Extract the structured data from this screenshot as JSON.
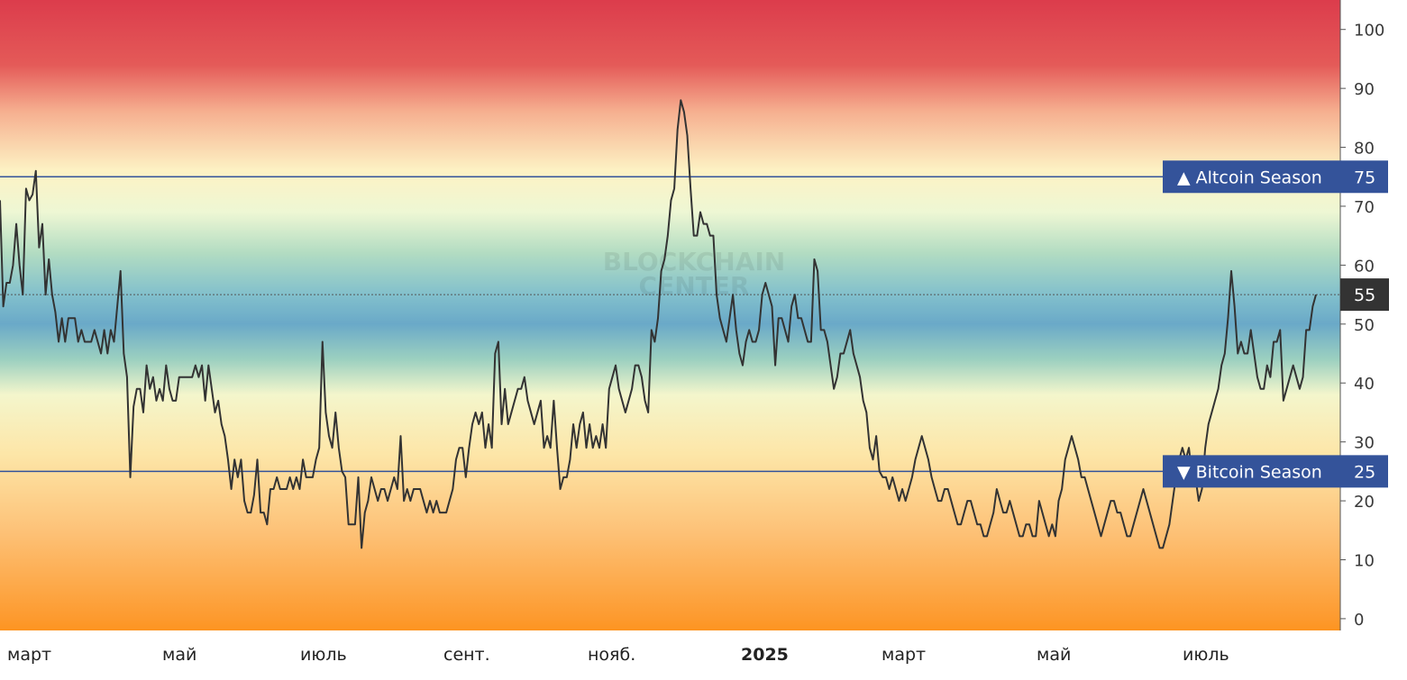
{
  "watermark": {
    "line1": "BLOCKCHAIN",
    "line2": "CENTER"
  },
  "chart_data": {
    "type": "line",
    "title": "",
    "xlabel": "",
    "ylabel": "",
    "ylim": [
      -2,
      105
    ],
    "yticks": [
      0,
      10,
      20,
      30,
      40,
      50,
      60,
      70,
      80,
      90,
      100
    ],
    "xticks": [
      {
        "label": "март",
        "bold": false
      },
      {
        "label": "май",
        "bold": false
      },
      {
        "label": "июль",
        "bold": false
      },
      {
        "label": "сент.",
        "bold": false
      },
      {
        "label": "нояб.",
        "bold": false
      },
      {
        "label": "2025",
        "bold": true
      },
      {
        "label": "март",
        "bold": false
      },
      {
        "label": "май",
        "bold": false
      },
      {
        "label": "июль",
        "bold": false
      }
    ],
    "reference_lines": [
      {
        "value": 75,
        "label": "▲ Altcoin Season",
        "value_label": "75",
        "color": "#34539a"
      },
      {
        "value": 25,
        "label": "▼ Bitcoin Season",
        "value_label": "25",
        "color": "#34539a"
      }
    ],
    "current_value": {
      "value": 55,
      "label": "55"
    },
    "background_gradient": [
      {
        "value": 105,
        "color": "#dc3c4c"
      },
      {
        "value": 94,
        "color": "#e45a58"
      },
      {
        "value": 86,
        "color": "#f6b090"
      },
      {
        "value": 76,
        "color": "#fdf2c4"
      },
      {
        "value": 69,
        "color": "#eef7d4"
      },
      {
        "value": 62,
        "color": "#b2dcc2"
      },
      {
        "value": 55,
        "color": "#82c0cc"
      },
      {
        "value": 50,
        "color": "#6aa9c8"
      },
      {
        "value": 44,
        "color": "#9cd0c0"
      },
      {
        "value": 38,
        "color": "#f4f6cc"
      },
      {
        "value": 28,
        "color": "#fde6a8"
      },
      {
        "value": 15,
        "color": "#fdc278"
      },
      {
        "value": 0,
        "color": "#fd9a2e"
      },
      {
        "value": -2,
        "color": "#fd9420"
      }
    ],
    "line_color": "#333333",
    "series": [
      {
        "values": [
          71,
          53,
          57,
          57,
          60,
          67,
          60,
          55,
          73,
          71,
          72,
          76,
          63,
          67,
          55,
          61,
          55,
          52,
          47,
          51,
          47,
          51,
          51,
          51,
          47,
          49,
          47,
          47,
          47,
          49,
          47,
          45,
          49,
          45,
          49,
          47,
          53,
          59,
          45,
          41,
          24,
          36,
          39,
          39,
          35,
          43,
          39,
          41,
          37,
          39,
          37,
          43,
          39,
          37,
          37,
          41,
          41,
          41,
          41,
          41,
          43,
          41,
          43,
          37,
          43,
          39,
          35,
          37,
          33,
          31,
          27,
          22,
          27,
          24,
          27,
          20,
          18,
          18,
          21,
          27,
          18,
          18,
          16,
          22,
          22,
          24,
          22,
          22,
          22,
          24,
          22,
          24,
          22,
          27,
          24,
          24,
          24,
          27,
          29,
          47,
          35,
          31,
          29,
          35,
          29,
          25,
          24,
          16,
          16,
          16,
          24,
          12,
          18,
          20,
          24,
          22,
          20,
          22,
          22,
          20,
          22,
          24,
          22,
          31,
          20,
          22,
          20,
          22,
          22,
          22,
          20,
          18,
          20,
          18,
          20,
          18,
          18,
          18,
          20,
          22,
          27,
          29,
          29,
          24,
          29,
          33,
          35,
          33,
          35,
          29,
          33,
          29,
          45,
          47,
          33,
          39,
          33,
          35,
          37,
          39,
          39,
          41,
          37,
          35,
          33,
          35,
          37,
          29,
          31,
          29,
          37,
          29,
          22,
          24,
          24,
          27,
          33,
          29,
          33,
          35,
          29,
          33,
          29,
          31,
          29,
          33,
          29,
          39,
          41,
          43,
          39,
          37,
          35,
          37,
          39,
          43,
          43,
          41,
          37,
          35,
          49,
          47,
          51,
          59,
          61,
          65,
          71,
          73,
          83,
          88,
          86,
          82,
          73,
          65,
          65,
          69,
          67,
          67,
          65,
          65,
          55,
          51,
          49,
          47,
          51,
          55,
          49,
          45,
          43,
          47,
          49,
          47,
          47,
          49,
          55,
          57,
          55,
          53,
          43,
          51,
          51,
          49,
          47,
          53,
          55,
          51,
          51,
          49,
          47,
          47,
          61,
          59,
          49,
          49,
          47,
          43,
          39,
          41,
          45,
          45,
          47,
          49,
          45,
          43,
          41,
          37,
          35,
          29,
          27,
          31,
          25,
          24,
          24,
          22,
          24,
          22,
          20,
          22,
          20,
          22,
          24,
          27,
          29,
          31,
          29,
          27,
          24,
          22,
          20,
          20,
          22,
          22,
          20,
          18,
          16,
          16,
          18,
          20,
          20,
          18,
          16,
          16,
          14,
          14,
          16,
          18,
          22,
          20,
          18,
          18,
          20,
          18,
          16,
          14,
          14,
          16,
          16,
          14,
          14,
          20,
          18,
          16,
          14,
          16,
          14,
          20,
          22,
          27,
          29,
          31,
          29,
          27,
          24,
          24,
          22,
          20,
          18,
          16,
          14,
          16,
          18,
          20,
          20,
          18,
          18,
          16,
          14,
          14,
          16,
          18,
          20,
          22,
          20,
          18,
          16,
          14,
          12,
          12,
          14,
          16,
          20,
          24,
          27,
          29,
          27,
          29,
          24,
          24,
          20,
          22,
          29,
          33,
          35,
          37,
          39,
          43,
          45,
          51,
          59,
          53,
          45,
          47,
          45,
          45,
          49,
          45,
          41,
          39,
          39,
          43,
          41,
          47,
          47,
          49,
          37,
          39,
          41,
          43,
          41,
          39,
          41,
          49,
          49,
          53,
          55
        ]
      }
    ]
  }
}
